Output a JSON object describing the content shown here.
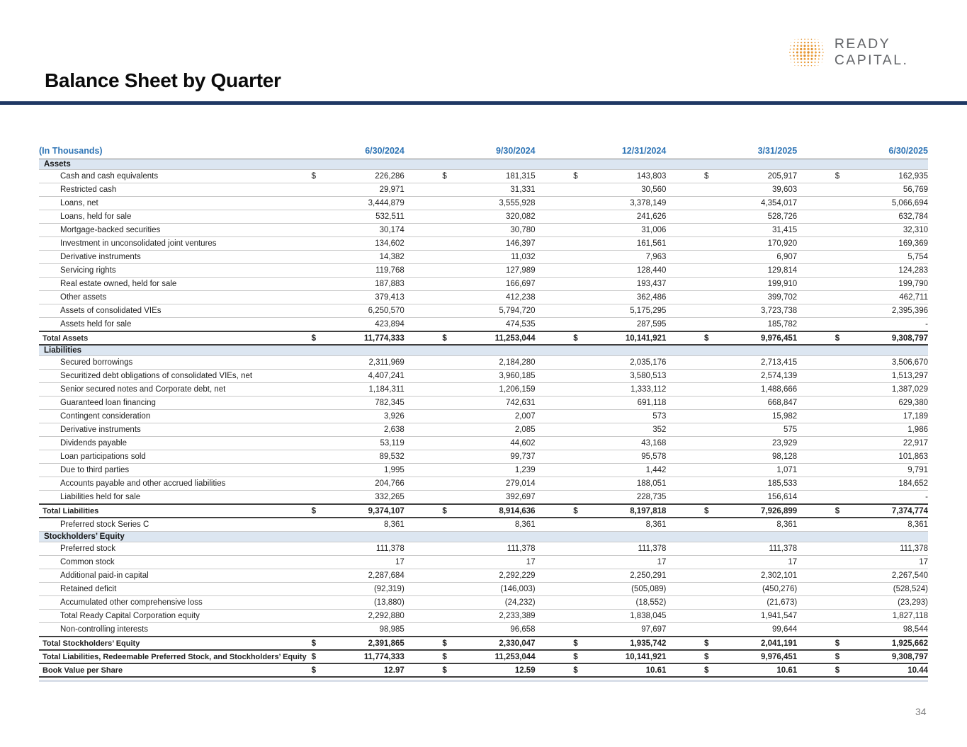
{
  "page": {
    "title": "Balance Sheet by Quarter",
    "number": "34"
  },
  "logo": {
    "text": "READY CAPITAL."
  },
  "colors": {
    "accent_navy": "#1F3864",
    "header_blue": "#2E74B5",
    "section_bg": "#DCE6F1",
    "row_border": "#C9C9C9",
    "total_border": "#3F3F3F",
    "logo_orange": "#EFA13D",
    "logo_orange_dark": "#D98B2B",
    "logo_gray": "#636569"
  },
  "table": {
    "units_label": "(In Thousands)",
    "dollar_sign": "$",
    "columns": [
      "6/30/2024",
      "9/30/2024",
      "12/31/2024",
      "3/31/2025",
      "6/30/2025"
    ],
    "rows": [
      {
        "type": "section",
        "label": "Assets"
      },
      {
        "type": "data",
        "label": "Cash and cash equivalents",
        "dollar": true,
        "values": [
          "226,286",
          "181,315",
          "143,803",
          "205,917",
          "162,935"
        ]
      },
      {
        "type": "data",
        "label": "Restricted cash",
        "values": [
          "29,971",
          "31,331",
          "30,560",
          "39,603",
          "56,769"
        ]
      },
      {
        "type": "data",
        "label": "Loans, net",
        "values": [
          "3,444,879",
          "3,555,928",
          "3,378,149",
          "4,354,017",
          "5,066,694"
        ]
      },
      {
        "type": "data",
        "label": "Loans, held for sale",
        "values": [
          "532,511",
          "320,082",
          "241,626",
          "528,726",
          "632,784"
        ]
      },
      {
        "type": "data",
        "label": "Mortgage-backed securities",
        "values": [
          "30,174",
          "30,780",
          "31,006",
          "31,415",
          "32,310"
        ]
      },
      {
        "type": "data",
        "label": "Investment in unconsolidated joint ventures",
        "values": [
          "134,602",
          "146,397",
          "161,561",
          "170,920",
          "169,369"
        ]
      },
      {
        "type": "data",
        "label": "Derivative instruments",
        "values": [
          "14,382",
          "11,032",
          "7,963",
          "6,907",
          "5,754"
        ]
      },
      {
        "type": "data",
        "label": "Servicing rights",
        "values": [
          "119,768",
          "127,989",
          "128,440",
          "129,814",
          "124,283"
        ]
      },
      {
        "type": "data",
        "label": "Real estate owned, held for sale",
        "values": [
          "187,883",
          "166,697",
          "193,437",
          "199,910",
          "199,790"
        ]
      },
      {
        "type": "data",
        "label": "Other assets",
        "values": [
          "379,413",
          "412,238",
          "362,486",
          "399,702",
          "462,711"
        ]
      },
      {
        "type": "data",
        "label": "Assets of consolidated VIEs",
        "values": [
          "6,250,570",
          "5,794,720",
          "5,175,295",
          "3,723,738",
          "2,395,396"
        ]
      },
      {
        "type": "data",
        "label": "Assets held for sale",
        "values": [
          "423,894",
          "474,535",
          "287,595",
          "185,782",
          "-"
        ]
      },
      {
        "type": "total",
        "label": "Total Assets",
        "dollar": true,
        "values": [
          "11,774,333",
          "11,253,044",
          "10,141,921",
          "9,976,451",
          "9,308,797"
        ]
      },
      {
        "type": "section",
        "label": "Liabilities"
      },
      {
        "type": "data",
        "label": "Secured borrowings",
        "values": [
          "2,311,969",
          "2,184,280",
          "2,035,176",
          "2,713,415",
          "3,506,670"
        ]
      },
      {
        "type": "data",
        "label": "Securitized debt obligations of consolidated VIEs, net",
        "values": [
          "4,407,241",
          "3,960,185",
          "3,580,513",
          "2,574,139",
          "1,513,297"
        ]
      },
      {
        "type": "data",
        "label": "Senior secured notes and Corporate debt, net",
        "values": [
          "1,184,311",
          "1,206,159",
          "1,333,112",
          "1,488,666",
          "1,387,029"
        ]
      },
      {
        "type": "data",
        "label": "Guaranteed loan financing",
        "values": [
          "782,345",
          "742,631",
          "691,118",
          "668,847",
          "629,380"
        ]
      },
      {
        "type": "data",
        "label": "Contingent consideration",
        "values": [
          "3,926",
          "2,007",
          "573",
          "15,982",
          "17,189"
        ]
      },
      {
        "type": "data",
        "label": "Derivative instruments",
        "values": [
          "2,638",
          "2,085",
          "352",
          "575",
          "1,986"
        ]
      },
      {
        "type": "data",
        "label": "Dividends payable",
        "values": [
          "53,119",
          "44,602",
          "43,168",
          "23,929",
          "22,917"
        ]
      },
      {
        "type": "data",
        "label": "Loan participations sold",
        "values": [
          "89,532",
          "99,737",
          "95,578",
          "98,128",
          "101,863"
        ]
      },
      {
        "type": "data",
        "label": "Due to third parties",
        "values": [
          "1,995",
          "1,239",
          "1,442",
          "1,071",
          "9,791"
        ]
      },
      {
        "type": "data",
        "label": "Accounts payable and other accrued liabilities",
        "values": [
          "204,766",
          "279,014",
          "188,051",
          "185,533",
          "184,652"
        ]
      },
      {
        "type": "data",
        "label": "Liabilities held for sale",
        "values": [
          "332,265",
          "392,697",
          "228,735",
          "156,614",
          "-"
        ]
      },
      {
        "type": "total",
        "label": "Total Liabilities",
        "dollar": true,
        "values": [
          "9,374,107",
          "8,914,636",
          "8,197,818",
          "7,926,899",
          "7,374,774"
        ]
      },
      {
        "type": "data",
        "label": "Preferred stock Series C",
        "values": [
          "8,361",
          "8,361",
          "8,361",
          "8,361",
          "8,361"
        ]
      },
      {
        "type": "section",
        "label": "Stockholders’ Equity"
      },
      {
        "type": "data",
        "label": "Preferred stock",
        "values": [
          "111,378",
          "111,378",
          "111,378",
          "111,378",
          "111,378"
        ]
      },
      {
        "type": "data",
        "label": "Common stock",
        "values": [
          "17",
          "17",
          "17",
          "17",
          "17"
        ]
      },
      {
        "type": "data",
        "label": "Additional paid-in capital",
        "values": [
          "2,287,684",
          "2,292,229",
          "2,250,291",
          "2,302,101",
          "2,267,540"
        ]
      },
      {
        "type": "data",
        "label": "Retained deficit",
        "values": [
          "(92,319)",
          "(146,003)",
          "(505,089)",
          "(450,276)",
          "(528,524)"
        ]
      },
      {
        "type": "data",
        "label": "Accumulated other comprehensive loss",
        "values": [
          "(13,880)",
          "(24,232)",
          "(18,552)",
          "(21,673)",
          "(23,293)"
        ]
      },
      {
        "type": "data",
        "topline": true,
        "label": "Total Ready Capital Corporation equity",
        "values": [
          "2,292,880",
          "2,233,389",
          "1,838,045",
          "1,941,547",
          "1,827,118"
        ]
      },
      {
        "type": "data",
        "label": "Non-controlling interests",
        "values": [
          "98,985",
          "96,658",
          "97,697",
          "99,644",
          "98,544"
        ]
      },
      {
        "type": "total",
        "label": "Total Stockholders’ Equity",
        "dollar": true,
        "values": [
          "2,391,865",
          "2,330,047",
          "1,935,742",
          "2,041,191",
          "1,925,662"
        ]
      },
      {
        "type": "total",
        "label": "Total Liabilities, Redeemable Preferred Stock, and Stockholders’ Equity",
        "dollar": true,
        "values": [
          "11,774,333",
          "11,253,044",
          "10,141,921",
          "9,976,451",
          "9,308,797"
        ]
      },
      {
        "type": "total",
        "label": "Book Value per Share",
        "dollar": true,
        "values": [
          "12.97",
          "12.59",
          "10.61",
          "10.61",
          "10.44"
        ]
      }
    ]
  }
}
